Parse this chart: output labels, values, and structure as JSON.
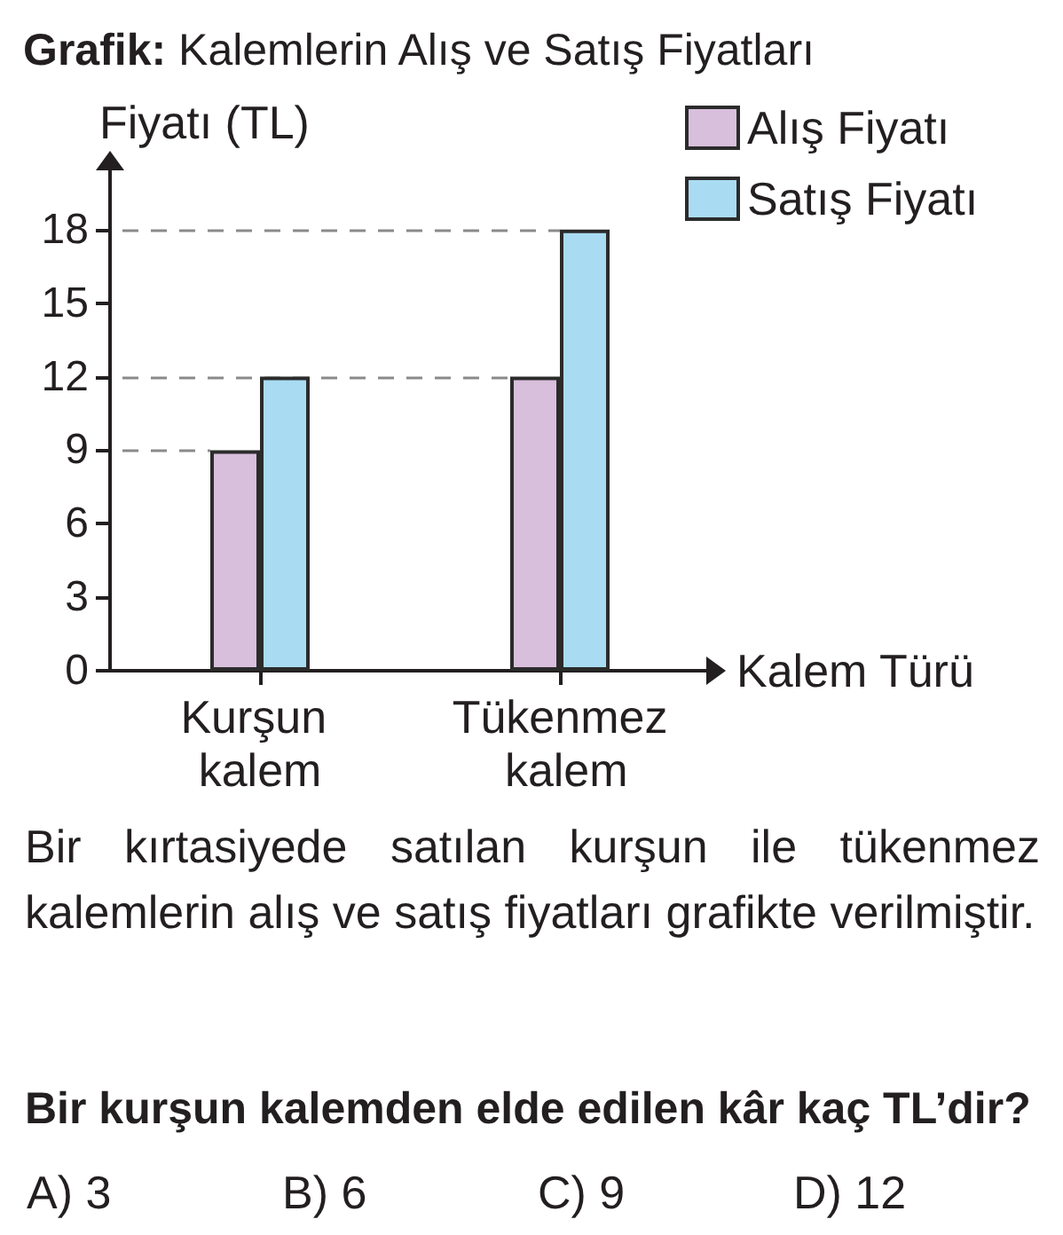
{
  "chart_data": {
    "type": "bar",
    "title": "Grafik: Kalemlerin Alış ve Satış Fiyatları",
    "xlabel": "Kalem Türü",
    "ylabel": "Fiyatı (TL)",
    "categories": [
      "Kurşun kalem",
      "Tükenmez kalem"
    ],
    "series": [
      {
        "name": "Alış Fiyatı",
        "color": "#d8bfdc",
        "values": [
          9,
          12
        ]
      },
      {
        "name": "Satış Fiyatı",
        "color": "#a9dcf3",
        "values": [
          12,
          18
        ]
      }
    ],
    "ylim": [
      0,
      21
    ],
    "yticks": [
      0,
      3,
      6,
      9,
      12,
      15,
      18
    ],
    "legend": "top right",
    "ref_lines": [
      {
        "axis": "y",
        "value": 9,
        "line_style": "dashed",
        "color": "#8a8a8a"
      },
      {
        "axis": "y",
        "value": 12,
        "line_style": "dashed",
        "color": "#8a8a8a"
      },
      {
        "axis": "y",
        "value": 18,
        "line_style": "dashed",
        "color": "#8a8a8a"
      }
    ],
    "annotations": [
      "Bir kırtasiyede satılan kurşun ile tükenmez kalemlerin alış ve satış fiyatları grafikte verilmiştir.",
      "Bir kurşun kalemden elde edilen kâr kaç TL’dir?",
      "A) 3",
      "B) 6",
      "C) 9",
      "D) 12"
    ]
  }
}
